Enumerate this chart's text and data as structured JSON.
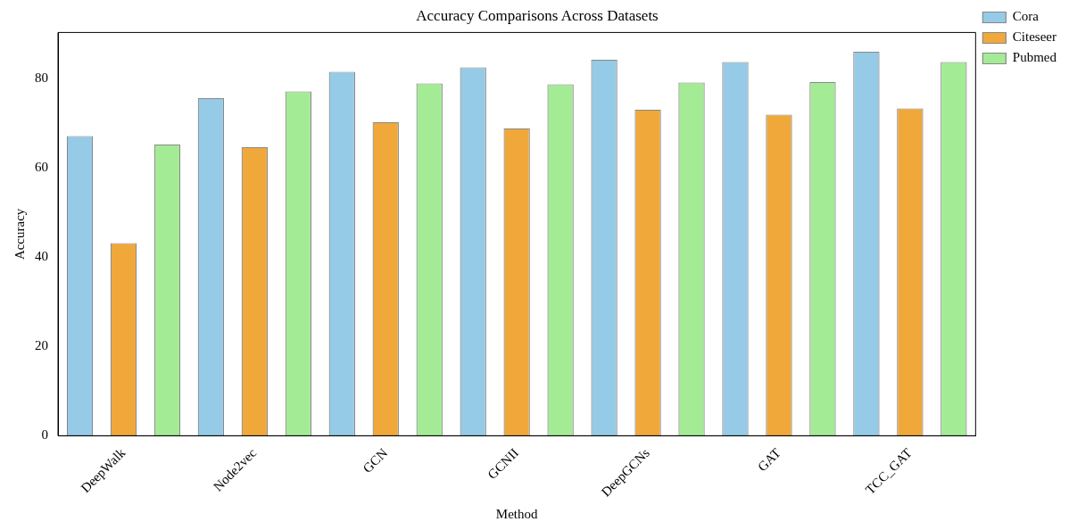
{
  "chart_data": {
    "type": "bar",
    "title": "Accuracy Comparisons Across Datasets",
    "xlabel": "Method",
    "ylabel": "Accuracy",
    "categories": [
      "DeepWalk",
      "Node2vec",
      "GCN",
      "GCNII",
      "DeepGCNs",
      "GAT",
      "TCC_GAT"
    ],
    "series": [
      {
        "name": "Cora",
        "color": "#95cbe6",
        "values": [
          67.2,
          75.7,
          81.6,
          82.6,
          84.3,
          83.8,
          86.1
        ]
      },
      {
        "name": "Citeseer",
        "color": "#f0a83b",
        "values": [
          43.2,
          64.7,
          70.3,
          68.9,
          73.1,
          72.0,
          73.4
        ]
      },
      {
        "name": "Pubmed",
        "color": "#a4eb95",
        "values": [
          65.3,
          77.2,
          79.0,
          78.8,
          79.2,
          79.3,
          83.8
        ]
      }
    ],
    "ylim": [
      0,
      90.4
    ],
    "yticks": [
      0,
      20,
      40,
      60,
      80
    ],
    "grid": false,
    "legend": "top right"
  }
}
